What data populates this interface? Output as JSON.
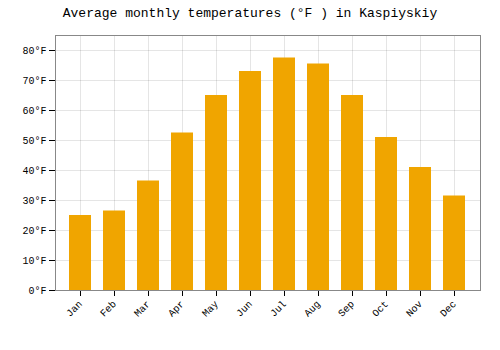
{
  "chart_data": {
    "type": "bar",
    "title": "Average monthly temperatures (°F ) in Kaspiyskiy",
    "categories": [
      "Jan",
      "Feb",
      "Mar",
      "Apr",
      "May",
      "Jun",
      "Jul",
      "Aug",
      "Sep",
      "Oct",
      "Nov",
      "Dec"
    ],
    "values": [
      25,
      26.5,
      36.5,
      52.5,
      65,
      73,
      77.5,
      75.5,
      65,
      51,
      41,
      31.5
    ],
    "color": "#F0A500",
    "ylim": [
      0,
      85
    ],
    "yticks": [
      {
        "value": 0,
        "label": "0°F"
      },
      {
        "value": 10,
        "label": "10°F"
      },
      {
        "value": 20,
        "label": "20°F"
      },
      {
        "value": 30,
        "label": "30°F"
      },
      {
        "value": 40,
        "label": "40°F"
      },
      {
        "value": 50,
        "label": "50°F"
      },
      {
        "value": 60,
        "label": "60°F"
      },
      {
        "value": 70,
        "label": "70°F"
      },
      {
        "value": 80,
        "label": "80°F"
      }
    ],
    "grid": true
  }
}
